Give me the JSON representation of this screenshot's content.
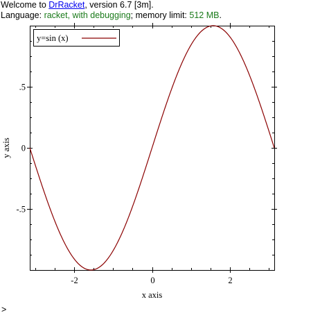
{
  "repl": {
    "welcome_prefix": "Welcome to ",
    "app_link": "DrRacket",
    "welcome_suffix": ", version 6.7 [3m].",
    "language_prefix": "Language: ",
    "language_value": "racket, with debugging",
    "memory_prefix": "; memory limit: ",
    "memory_value": "512 MB",
    "memory_suffix": ".",
    "prompt": ">"
  },
  "colors": {
    "link": "#0000ee",
    "status_green": "#1a7a1a",
    "series": "#8b0000"
  },
  "chart_data": {
    "type": "line",
    "function": "sin",
    "xlabel": "x axis",
    "ylabel": "y axis",
    "xlim": [
      -3.14159,
      3.14159
    ],
    "ylim": [
      -1,
      1
    ],
    "x_ticks": [
      {
        "value": -2,
        "label": "-2"
      },
      {
        "value": 0,
        "label": "0"
      },
      {
        "value": 2,
        "label": "2"
      }
    ],
    "y_ticks": [
      {
        "value": -0.5,
        "label": "-.5"
      },
      {
        "value": 0,
        "label": "0"
      },
      {
        "value": 0.5,
        "label": ".5"
      }
    ],
    "grid": false,
    "legend_position": "top-left",
    "series": [
      {
        "name": "y=sin (x)",
        "x": [
          -3.1416,
          -2.7489,
          -2.3562,
          -1.9635,
          -1.5708,
          -1.1781,
          -0.7854,
          -0.3927,
          0,
          0.3927,
          0.7854,
          1.1781,
          1.5708,
          1.9635,
          2.3562,
          2.7489,
          3.1416
        ],
        "y": [
          0,
          -0.3827,
          -0.7071,
          -0.9239,
          -1,
          -0.9239,
          -0.7071,
          -0.3827,
          0,
          0.3827,
          0.7071,
          0.9239,
          1,
          0.9239,
          0.7071,
          0.3827,
          0
        ]
      }
    ]
  }
}
